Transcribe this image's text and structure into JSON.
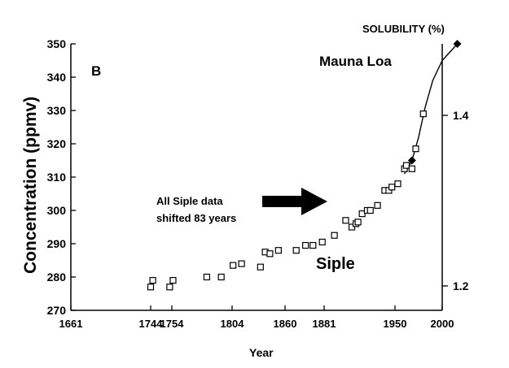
{
  "chart_data": {
    "type": "scatter",
    "panel_label": "B",
    "xlabel": "Year",
    "ylabel": "Concentration (ppmv)",
    "y2label": "SOLUBILITY (%)",
    "ylim": [
      270,
      350
    ],
    "y_ticks": [
      270,
      280,
      290,
      300,
      310,
      320,
      330,
      340,
      350
    ],
    "y2_ticks": [
      "1.2",
      "1.4"
    ],
    "x_ticks": [
      "1661",
      "1744",
      "1754",
      "1804",
      "1860",
      "1881",
      "1950",
      "2000"
    ],
    "grid": false,
    "annotations": {
      "mauna_loa": "Mauna Loa",
      "siple": "Siple",
      "shift_line1": "All Siple data",
      "shift_line2": "shifted 83 years"
    },
    "series": [
      {
        "name": "Siple",
        "marker": "open-square",
        "points": [
          {
            "x": 1744,
            "y": 277.0
          },
          {
            "x": 1745,
            "y": 279.0
          },
          {
            "x": 1753,
            "y": 277.0
          },
          {
            "x": 1755,
            "y": 279.0
          },
          {
            "x": 1783,
            "y": 280.0
          },
          {
            "x": 1795,
            "y": 280.0
          },
          {
            "x": 1805,
            "y": 283.5
          },
          {
            "x": 1814,
            "y": 284.0
          },
          {
            "x": 1834,
            "y": 283.0
          },
          {
            "x": 1839,
            "y": 287.5
          },
          {
            "x": 1844,
            "y": 287.0
          },
          {
            "x": 1853,
            "y": 288.0
          },
          {
            "x": 1866,
            "y": 288.0
          },
          {
            "x": 1871,
            "y": 289.5
          },
          {
            "x": 1875,
            "y": 289.5
          },
          {
            "x": 1880,
            "y": 290.5
          },
          {
            "x": 1891,
            "y": 292.5
          },
          {
            "x": 1902,
            "y": 297.0
          },
          {
            "x": 1908,
            "y": 295.0
          },
          {
            "x": 1912,
            "y": 296.0
          },
          {
            "x": 1914,
            "y": 296.5
          },
          {
            "x": 1918,
            "y": 299.0
          },
          {
            "x": 1923,
            "y": 300.0
          },
          {
            "x": 1926,
            "y": 300.0
          },
          {
            "x": 1933,
            "y": 301.5
          },
          {
            "x": 1940,
            "y": 306.0
          },
          {
            "x": 1944,
            "y": 306.0
          },
          {
            "x": 1947,
            "y": 307.0
          },
          {
            "x": 1953,
            "y": 308.0
          },
          {
            "x": 1960,
            "y": 312.5
          },
          {
            "x": 1962,
            "y": 313.5
          },
          {
            "x": 1968,
            "y": 312.5
          },
          {
            "x": 1972,
            "y": 318.5
          },
          {
            "x": 1980,
            "y": 329.0
          }
        ]
      },
      {
        "name": "Mauna Loa",
        "marker": "filled-diamond",
        "points": [
          {
            "x": 1968,
            "y": 315.0
          },
          {
            "x": 2016,
            "y": 350.0
          }
        ]
      }
    ],
    "curve": [
      {
        "x": 1960,
        "y": 311.0
      },
      {
        "x": 1968,
        "y": 315.0
      },
      {
        "x": 1975,
        "y": 322.0
      },
      {
        "x": 1982,
        "y": 331.0
      },
      {
        "x": 1990,
        "y": 339.0
      },
      {
        "x": 2000,
        "y": 345.0
      },
      {
        "x": 2016,
        "y": 350.0
      }
    ]
  }
}
